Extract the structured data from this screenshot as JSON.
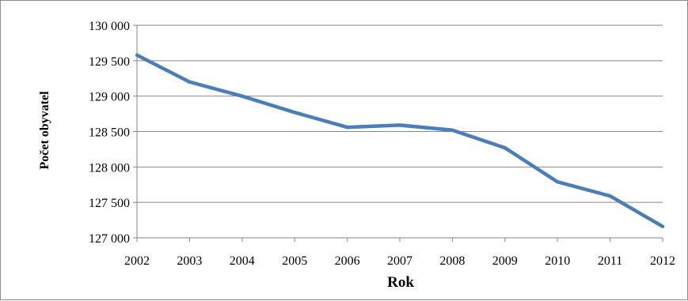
{
  "chart_data": {
    "type": "line",
    "title": "",
    "xlabel": "Rok",
    "ylabel": "Počet obyvatel",
    "x": [
      "2002",
      "2003",
      "2004",
      "2005",
      "2006",
      "2007",
      "2008",
      "2009",
      "2010",
      "2011",
      "2012"
    ],
    "series": [
      {
        "values": [
          129580,
          129200,
          129000,
          128770,
          128560,
          128590,
          128520,
          128270,
          127790,
          127590,
          127160
        ]
      }
    ],
    "ylim": [
      127000,
      130000
    ],
    "y_ticks": [
      127000,
      127500,
      128000,
      128500,
      129000,
      129500,
      130000
    ],
    "y_tick_labels": [
      "127 000",
      "127 500",
      "128 000",
      "128 500",
      "129 000",
      "129 500",
      "130 000"
    ],
    "grid": true,
    "legend": "none",
    "line_color": "#4a7ebb",
    "grid_color": "#868686"
  }
}
